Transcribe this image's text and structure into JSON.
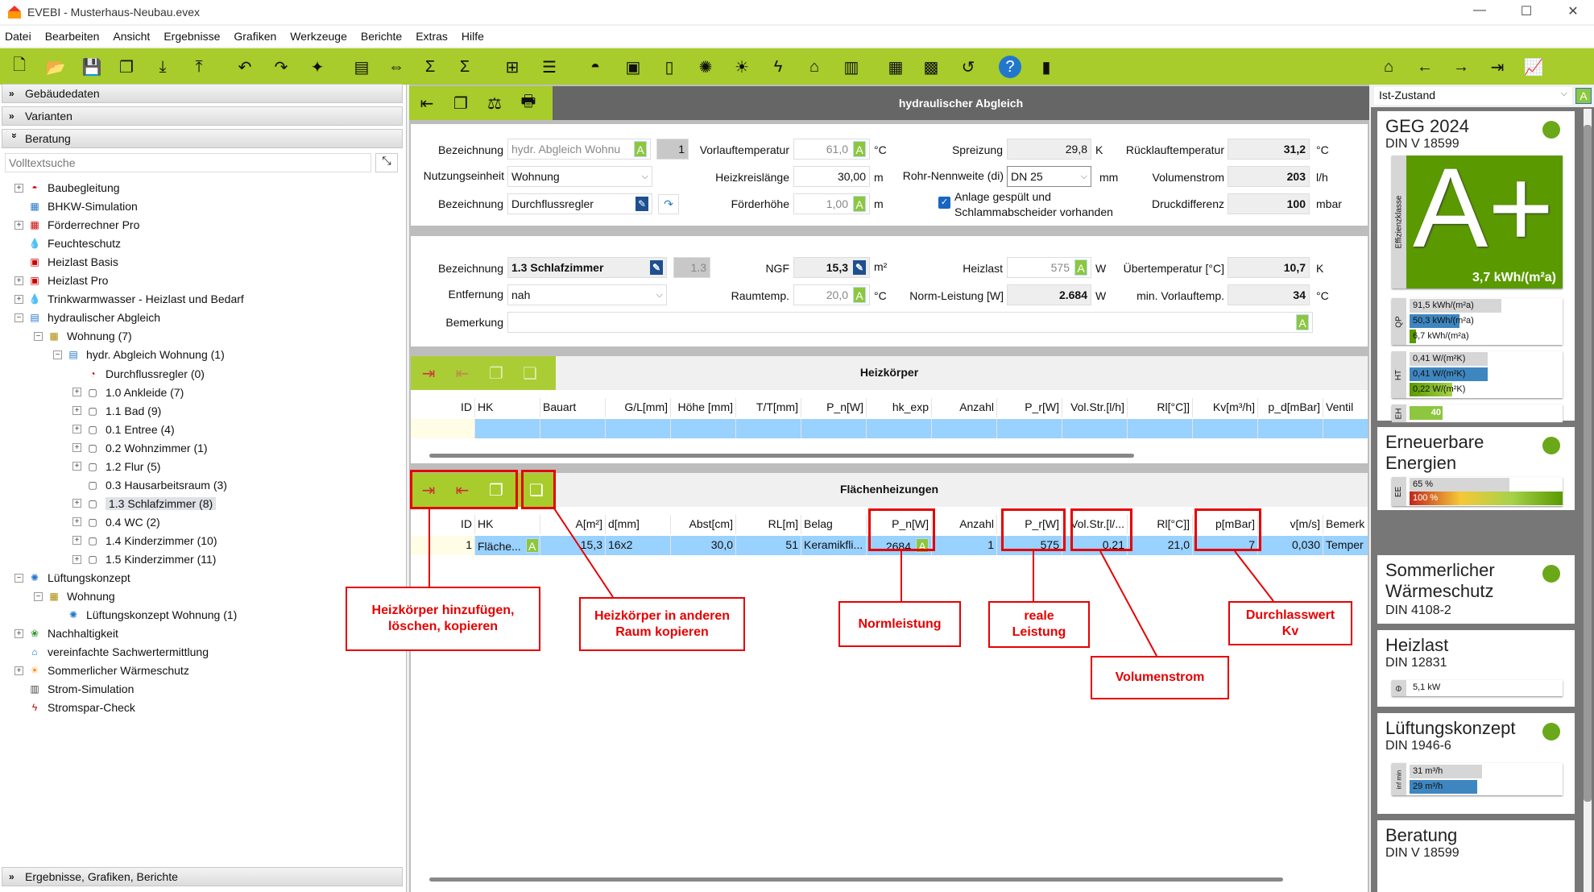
{
  "window": {
    "title": "EVEBI - Musterhaus-Neubau.evex"
  },
  "menu": [
    "Datei",
    "Bearbeiten",
    "Ansicht",
    "Ergebnisse",
    "Grafiken",
    "Werkzeuge",
    "Berichte",
    "Extras",
    "Hilfe"
  ],
  "toolbar_icons": [
    "new-file-icon",
    "open-folder-icon",
    "save-icon",
    "copy-window-icon",
    "import-icon",
    "export-icon",
    "undo-icon",
    "redo-icon",
    "magic-wand-icon",
    "document-icon",
    "compare-icon",
    "sum-icon",
    "sigma-icon",
    "hierarchy-icon",
    "list-icon",
    "helmet-icon",
    "pdf-icon",
    "form-icon",
    "network-icon",
    "sun-icon",
    "lightning-icon",
    "house-euro-icon",
    "meter-icon",
    "calculator-icon",
    "chart-icon",
    "curve-icon",
    "help-icon",
    "door-icon"
  ],
  "toolbar_right_icons": [
    "house-3d-icon",
    "arrow-left-icon",
    "arrow-right-icon",
    "exit-icon",
    "chart-line-icon"
  ],
  "left": {
    "sections": {
      "gebaeude": "Gebäudedaten",
      "varianten": "Varianten",
      "beratung": "Beratung",
      "ergebnisse": "Ergebnisse, Grafiken, Berichte"
    },
    "search_placeholder": "Volltextsuche",
    "tree": [
      {
        "label": "Baubegleitung",
        "level": 0,
        "exp": "+",
        "icon": "helmet-icon",
        "c": "#c00"
      },
      {
        "label": "BHKW-Simulation",
        "level": 0,
        "exp": "",
        "icon": "bhkw-icon",
        "c": "#27c"
      },
      {
        "label": "Förderrechner Pro",
        "level": 0,
        "exp": "+",
        "icon": "calculator-icon",
        "c": "#c00"
      },
      {
        "label": "Feuchteschutz",
        "level": 0,
        "exp": "",
        "icon": "drop-icon",
        "c": "#15a"
      },
      {
        "label": "Heizlast Basis",
        "level": 0,
        "exp": "",
        "icon": "heizlast-icon",
        "c": "#c00"
      },
      {
        "label": "Heizlast Pro",
        "level": 0,
        "exp": "+",
        "icon": "heizlast-icon",
        "c": "#c00"
      },
      {
        "label": "Trinkwarmwasser - Heizlast und Bedarf",
        "level": 0,
        "exp": "+",
        "icon": "drop-icon",
        "c": "#15a"
      },
      {
        "label": "hydraulischer Abgleich",
        "level": 0,
        "exp": "-",
        "icon": "hydraulic-icon",
        "c": "#27c"
      },
      {
        "label": "Wohnung (7)",
        "level": 1,
        "exp": "-",
        "icon": "apartment-icon",
        "c": "#a80"
      },
      {
        "label": "hydr. Abgleich Wohnung (1)",
        "level": 2,
        "exp": "-",
        "icon": "hydraulic-icon",
        "c": "#27c"
      },
      {
        "label": "Durchflussregler (0)",
        "level": 3,
        "exp": "",
        "icon": "gauge-icon",
        "c": "#a00"
      },
      {
        "label": "1.0 Ankleide (7)",
        "level": 3,
        "exp": "+",
        "icon": "room-icon",
        "c": "#444"
      },
      {
        "label": "1.1 Bad (9)",
        "level": 3,
        "exp": "+",
        "icon": "room-icon",
        "c": "#444"
      },
      {
        "label": "0.1 Entree (4)",
        "level": 3,
        "exp": "+",
        "icon": "room-icon",
        "c": "#444"
      },
      {
        "label": "0.2 Wohnzimmer (1)",
        "level": 3,
        "exp": "+",
        "icon": "room-icon",
        "c": "#444"
      },
      {
        "label": "1.2 Flur (5)",
        "level": 3,
        "exp": "+",
        "icon": "room-icon",
        "c": "#444"
      },
      {
        "label": "0.3 Hausarbeitsraum (3)",
        "level": 3,
        "exp": "",
        "icon": "room-icon",
        "c": "#444"
      },
      {
        "label": "1.3 Schlafzimmer (8)",
        "level": 3,
        "exp": "+",
        "icon": "room-icon",
        "c": "#444",
        "selected": true
      },
      {
        "label": "0.4 WC (2)",
        "level": 3,
        "exp": "+",
        "icon": "room-icon",
        "c": "#444"
      },
      {
        "label": "1.4 Kinderzimmer (10)",
        "level": 3,
        "exp": "+",
        "icon": "room-icon",
        "c": "#444"
      },
      {
        "label": "1.5 Kinderzimmer (11)",
        "level": 3,
        "exp": "+",
        "icon": "room-icon",
        "c": "#444"
      },
      {
        "label": "Lüftungskonzept",
        "level": 0,
        "exp": "-",
        "icon": "fan-icon",
        "c": "#27c"
      },
      {
        "label": "Wohnung",
        "level": 1,
        "exp": "-",
        "icon": "apartment-icon",
        "c": "#a80"
      },
      {
        "label": "Lüftungskonzept Wohnung (1)",
        "level": 2,
        "exp": "",
        "icon": "fan-icon",
        "c": "#27c"
      },
      {
        "label": "Nachhaltigkeit",
        "level": 0,
        "exp": "+",
        "icon": "leaf-icon",
        "c": "#393"
      },
      {
        "label": "vereinfachte Sachwertermittlung",
        "level": 0,
        "exp": "",
        "icon": "house-icon",
        "c": "#27c"
      },
      {
        "label": "Sommerlicher Wärmeschutz",
        "level": 0,
        "exp": "+",
        "icon": "sun-icon",
        "c": "#f80"
      },
      {
        "label": "Strom-Simulation",
        "level": 0,
        "exp": "",
        "icon": "meter-icon",
        "c": "#444"
      },
      {
        "label": "Stromspar-Check",
        "level": 0,
        "exp": "",
        "icon": "lightning-icon",
        "c": "#c00"
      }
    ]
  },
  "main": {
    "title": "hydraulischer Abgleich",
    "system": {
      "bezeichnung_label": "Bezeichnung",
      "bezeichnung": "hydr. Abgleich Wohnu",
      "nr": "1",
      "nutzung_label": "Nutzungseinheit",
      "nutzung": "Wohnung",
      "regler_label": "Bezeichnung",
      "regler": "Durchflussregler",
      "vorlauf_label": "Vorlauftemperatur",
      "vorlauf": "61,0",
      "vorlauf_unit": "°C",
      "kreis_label": "Heizkreislänge",
      "kreis": "30,00",
      "kreis_unit": "m",
      "foerder_label": "Förderhöhe",
      "foerder": "1,00",
      "foerder_unit": "m",
      "spreizung_label": "Spreizung",
      "spreizung": "29,8",
      "spreizung_unit": "K",
      "rohr_label": "Rohr-Nennweite (di)",
      "rohr": "DN 25",
      "rohr_unit": "mm",
      "gespuelt_label": "Anlage gespült und Schlammabscheider vorhanden",
      "gespuelt": true,
      "ruecklauf_label": "Rücklauftemperatur",
      "ruecklauf": "31,2",
      "ruecklauf_unit": "°C",
      "volumen_label": "Volumenstrom",
      "volumen": "203",
      "volumen_unit": "l/h",
      "druck_label": "Druckdifferenz",
      "druck": "100",
      "druck_unit": "mbar"
    },
    "room": {
      "bezeichnung_label": "Bezeichnung",
      "bezeichnung": "1.3 Schlafzimmer",
      "nr": "1.3",
      "entfernung_label": "Entfernung",
      "entfernung": "nah",
      "bemerkung_label": "Bemerkung",
      "bemerkung": "",
      "ngf_label": "NGF",
      "ngf": "15,3",
      "ngf_unit": "m²",
      "raumtemp_label": "Raumtemp.",
      "raumtemp": "20,0",
      "raumtemp_unit": "°C",
      "heizlast_label": "Heizlast",
      "heizlast": "575",
      "heizlast_unit": "W",
      "norm_label": "Norm-Leistung [W]",
      "norm": "2.684",
      "norm_unit": "W",
      "ueber_label": "Übertemperatur [°C]",
      "ueber": "10,7",
      "ueber_unit": "K",
      "minvl_label": "min. Vorlauftemp.",
      "minvl": "34",
      "minvl_unit": "°C"
    },
    "heizkoerper": {
      "title": "Heizkörper",
      "columns": [
        "ID",
        "HK",
        "Bauart",
        "G/L[mm]",
        "Höhe [mm]",
        "T/T[mm]",
        "P_n[W]",
        "hk_exp",
        "Anzahl",
        "P_r[W]",
        "Vol.Str.[l/h]",
        "Rl[°C]]",
        "Kv[m³/h]",
        "p_d[mBar]",
        "Ventil"
      ],
      "rows": [
        [
          "",
          "",
          "",
          "",
          "",
          "",
          "",
          "",
          "",
          "",
          "",
          "",
          "",
          "",
          ""
        ]
      ]
    },
    "flaechen": {
      "title": "Flächenheizungen",
      "columns": [
        "ID",
        "HK",
        "A[m²]",
        "d[mm]",
        "Abst[cm]",
        "RL[m]",
        "Belag",
        "P_n[W]",
        "Anzahl",
        "P_r[W]",
        "Vol.Str.[l/...",
        "Rl[°C]]",
        "p[mBar]",
        "v[m/s]",
        "Bemerk"
      ],
      "rows": [
        [
          "1",
          "Fläche...",
          "15,3",
          "16x2",
          "30,0",
          "51",
          "Keramikfli...",
          "2684",
          "1",
          "575",
          "0,21",
          "21,0",
          "7",
          "0,030",
          "Temper"
        ]
      ]
    },
    "annotations": {
      "add": "Heizkörper hinzufügen, löschen, kopieren",
      "copyroom": "Heizkörper in anderen Raum kopieren",
      "norm": "Normleistung",
      "real": "reale Leistung",
      "vol": "Volumenstrom",
      "kv": "Durchlasswert Kv"
    }
  },
  "right": {
    "variant": "Ist-Zustand",
    "geg": {
      "title": "GEG 2024",
      "sub": "DIN V 18599",
      "side": "Effizienzklasse",
      "klasse": "A+",
      "value": "3,7 kWh/(m²a)",
      "qp_side": "QP",
      "qp": [
        "91,5 kWh/(m²a)",
        "50,3 kWh/(m²a)",
        "6,7 kWh/(m²a)"
      ],
      "ht_side": "HT",
      "ht": [
        "0,41 W/(m²K)",
        "0,41 W/(m²K)",
        "0,22 W/(m²K)"
      ],
      "eh_side": "EH",
      "eh": "40"
    },
    "ee": {
      "title": "Erneuerbare Energien",
      "side": "EE",
      "values": [
        "65 %",
        "100 %"
      ]
    },
    "sommer": {
      "title": "Sommerlicher Wärmeschutz",
      "sub": "DIN 4108-2"
    },
    "heizlast": {
      "title": "Heizlast",
      "sub": "DIN 12831",
      "value": "5,1 kW"
    },
    "lueftung": {
      "title": "Lüftungskonzept",
      "sub": "DIN 1946-6",
      "side": "inf min",
      "values": [
        "31 m³/h",
        "29 m³/h"
      ]
    },
    "beratung": {
      "title": "Beratung",
      "sub": "DIN V 18599"
    }
  },
  "colors": {
    "accent": "#a7cc2b",
    "selection": "#99d1ff",
    "annotation": "#e60000",
    "efficiency": "#5a9a00"
  }
}
